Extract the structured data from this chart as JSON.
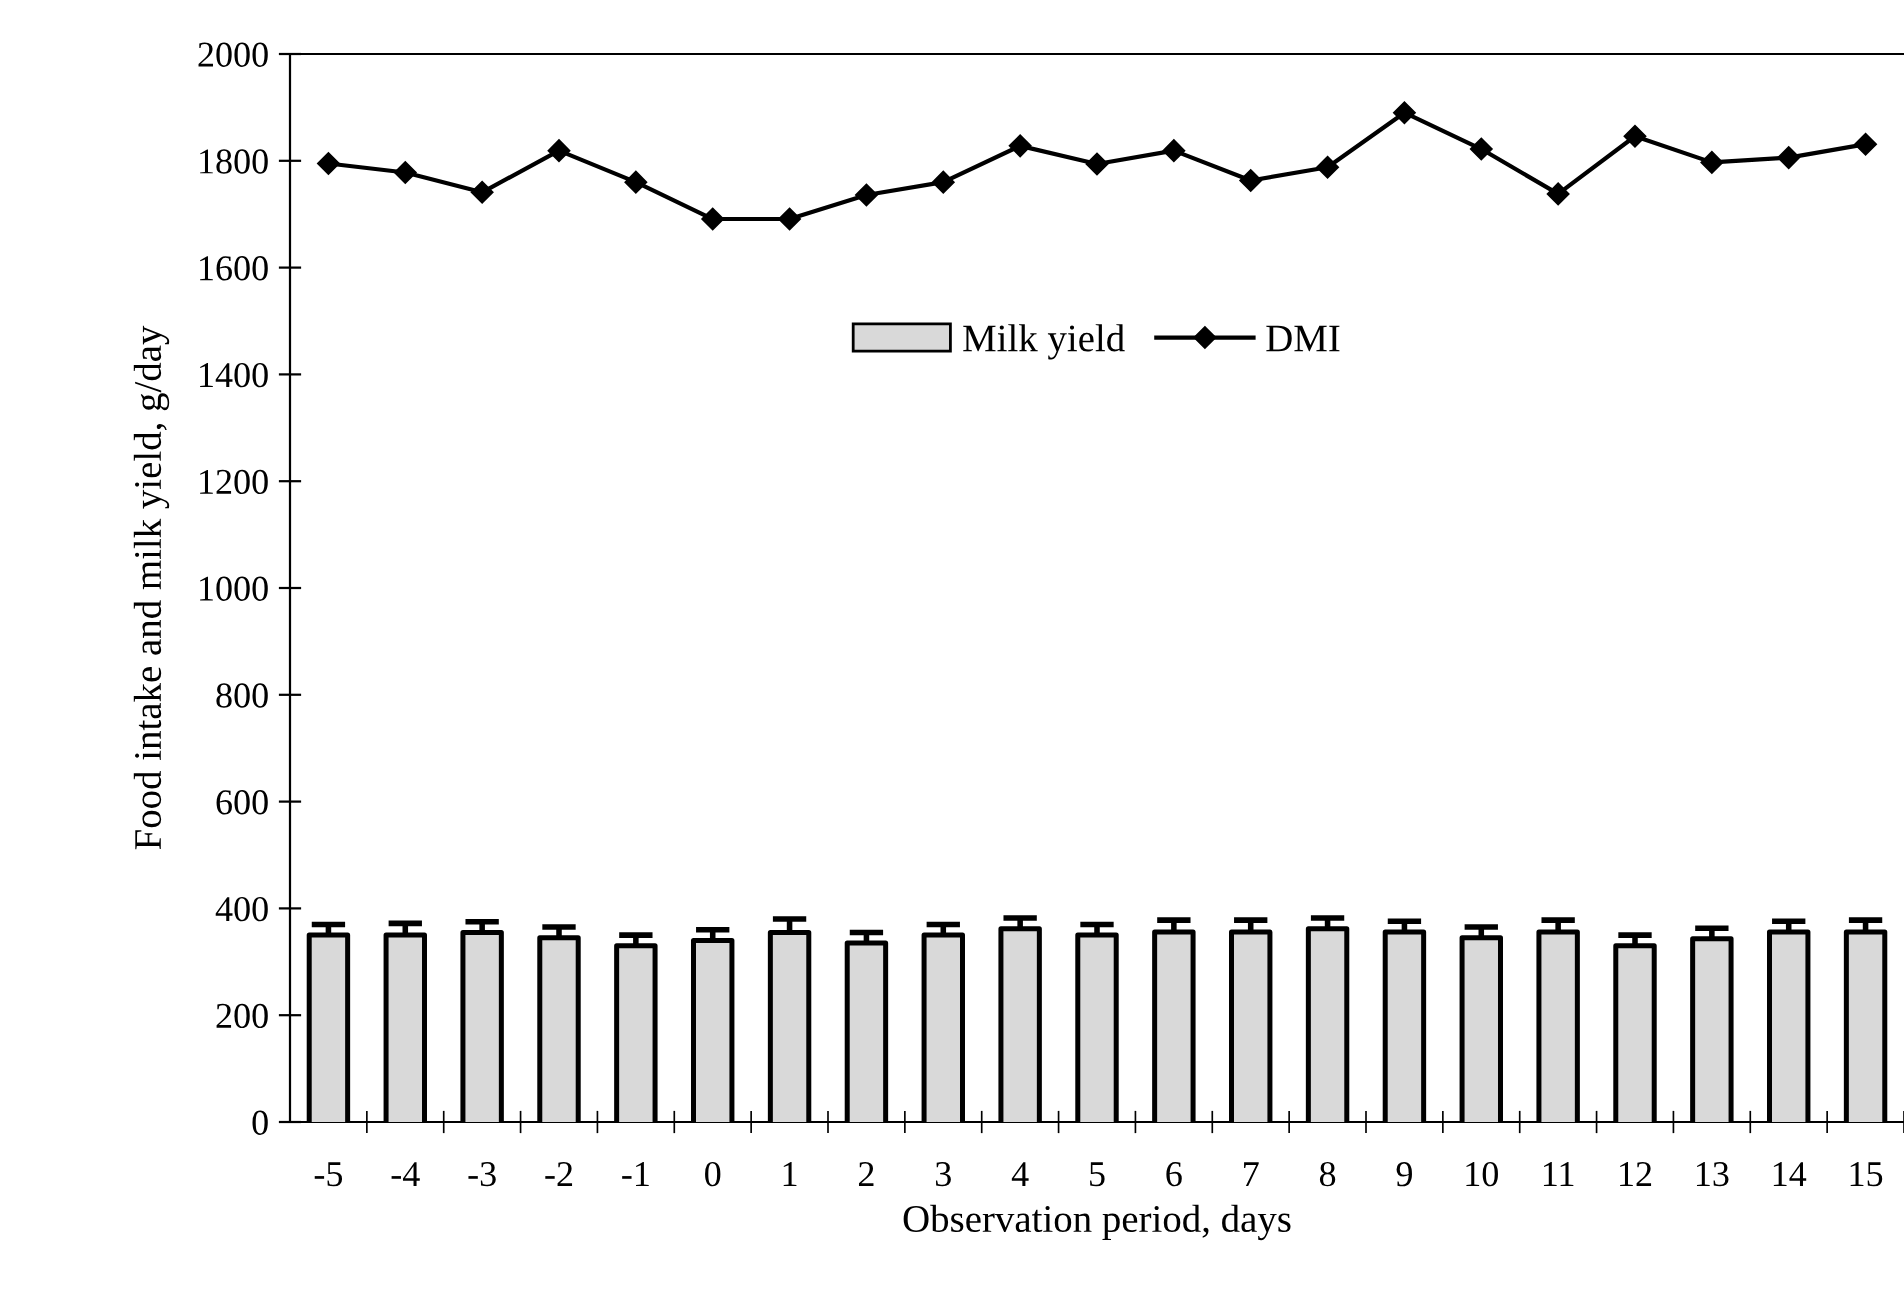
{
  "chart_data": {
    "type": "bar",
    "xlabel": "Observation period, days",
    "ylabel": "Food intake and milk yield, g/day",
    "categories": [
      "-5",
      "-4",
      "-3",
      "-2",
      "-1",
      "0",
      "1",
      "2",
      "3",
      "4",
      "5",
      "6",
      "7",
      "8",
      "9",
      "10",
      "11",
      "12",
      "13",
      "14",
      "15"
    ],
    "series": [
      {
        "name": "Milk yield",
        "color": "#d9d9d9",
        "values": [
          350,
          350,
          355,
          345,
          330,
          340,
          355,
          335,
          350,
          362,
          350,
          356,
          356,
          362,
          356,
          345,
          356,
          330,
          343,
          356,
          356
        ],
        "errors": [
          20,
          22,
          20,
          20,
          20,
          20,
          25,
          20,
          20,
          20,
          20,
          22,
          22,
          20,
          20,
          20,
          22,
          20,
          20,
          20,
          22
        ]
      },
      {
        "name": "DMI",
        "type": "line",
        "color": "#000000",
        "marker": "diamond",
        "values": [
          1795,
          1778,
          1741,
          1819,
          1760,
          1691,
          1691,
          1736,
          1760,
          1828,
          1794,
          1819,
          1763,
          1788,
          1890,
          1822,
          1738,
          1846,
          1797,
          1806,
          1831
        ]
      }
    ],
    "ylim": [
      0,
      2000
    ],
    "yticks": [
      0,
      200,
      400,
      600,
      800,
      1000,
      1200,
      1400,
      1600,
      1800,
      2000
    ],
    "grid": false,
    "legend": "top"
  }
}
